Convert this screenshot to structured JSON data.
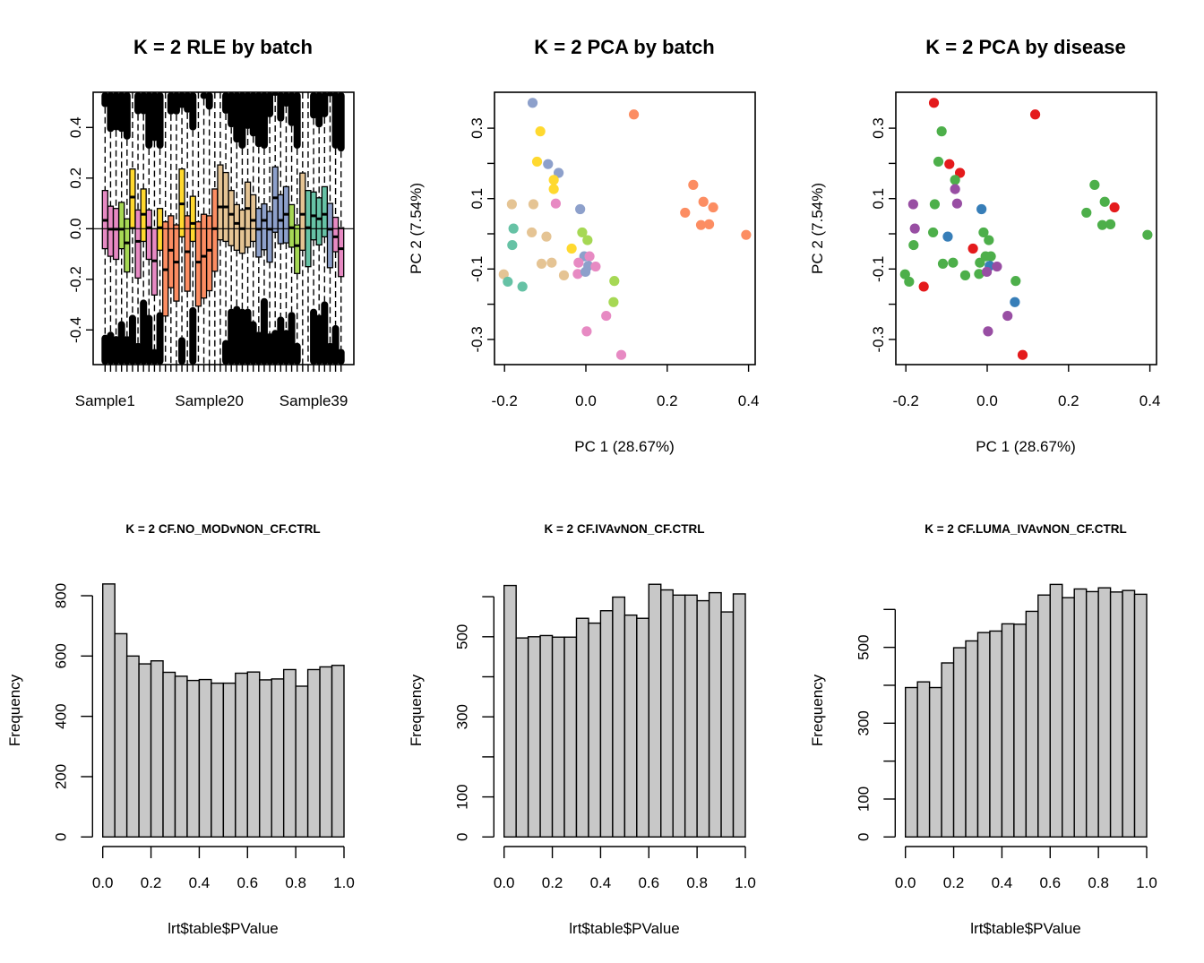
{
  "figure": {
    "panels": 6,
    "layout": "2 rows x 3 columns"
  },
  "palettes": {
    "batch": {
      "pink": "#E78AC3",
      "green": "#A6D854",
      "yellow": "#FFD92F",
      "orange": "#FC8D62",
      "tan": "#E5C494",
      "blue": "#8DA0CB",
      "teal": "#66C2A5"
    },
    "disease": {
      "red": "#E41A1C",
      "green": "#4DAF4A",
      "blue": "#377EB8",
      "purple": "#984EA3"
    },
    "hist_fill": "#C8C8C8"
  },
  "chart_data": [
    {
      "id": "rle",
      "type": "boxplot",
      "title": "K = 2 RLE by batch",
      "xlabel": "",
      "ylabel": "",
      "ylim": [
        -0.535,
        0.54
      ],
      "yticks": [
        -0.4,
        -0.2,
        0.0,
        0.2,
        0.4
      ],
      "ytick_labels": [
        "-0.4",
        "-0.2",
        "0.0",
        "0.2",
        "0.4"
      ],
      "xtick_labels": [
        {
          "index": 0,
          "label": "Sample1"
        },
        {
          "index": 19,
          "label": "Sample20"
        },
        {
          "index": 38,
          "label": "Sample39"
        }
      ],
      "reference_line": 0.0,
      "boxes": [
        {
          "c": "pink",
          "q3": 0.151,
          "med": 0.033,
          "q1": -0.079,
          "outHi": 0.48,
          "outLo": -0.419
        },
        {
          "c": "pink",
          "q3": 0.089,
          "med": -0.002,
          "q1": -0.109,
          "outHi": 0.382,
          "outLo": -0.407
        },
        {
          "c": "pink",
          "q3": 0.08,
          "med": -0.002,
          "q1": -0.121,
          "outHi": 0.388,
          "outLo": -0.424
        },
        {
          "c": "green",
          "q3": 0.104,
          "med": -0.002,
          "q1": -0.079,
          "outHi": 0.382,
          "outLo": -0.365
        },
        {
          "c": "green",
          "q3": 0.039,
          "med": -0.056,
          "q1": -0.171,
          "outHi": 0.352,
          "outLo": -0.424
        },
        {
          "c": "yellow",
          "q3": 0.236,
          "med": 0.125,
          "q1": 0.004,
          "outHi": null,
          "outLo": -0.34
        },
        {
          "c": "pink",
          "q3": 0.074,
          "med": -0.05,
          "q1": -0.195,
          "outHi": 0.452,
          "outLo": -0.451
        },
        {
          "c": "yellow",
          "q3": 0.157,
          "med": 0.057,
          "q1": -0.05,
          "outHi": 0.452,
          "outLo": -0.28
        },
        {
          "c": "pink",
          "q3": 0.074,
          "med": 0.004,
          "q1": -0.121,
          "outHi": 0.316,
          "outLo": -0.34
        },
        {
          "c": "pink",
          "q3": 0.0,
          "med": -0.127,
          "q1": -0.262,
          "outHi": 0.346,
          "outLo": -0.475
        },
        {
          "c": "yellow",
          "q3": 0.08,
          "med": 0.004,
          "q1": -0.085,
          "outHi": 0.316,
          "outLo": -0.329
        },
        {
          "c": "orange",
          "q3": 0.027,
          "med": -0.162,
          "q1": -0.345,
          "outHi": null,
          "outLo": null
        },
        {
          "c": "orange",
          "q3": 0.051,
          "med": -0.085,
          "q1": -0.233,
          "outHi": 0.451,
          "outLo": null
        },
        {
          "c": "orange",
          "q3": 0.015,
          "med": -0.132,
          "q1": -0.286,
          "outHi": 0.451,
          "outLo": null
        },
        {
          "c": "yellow",
          "q3": 0.236,
          "med": 0.098,
          "q1": -0.032,
          "outHi": 0.476,
          "outLo": -0.428
        },
        {
          "c": "orange",
          "q3": 0.051,
          "med": -0.091,
          "q1": -0.247,
          "outHi": 0.458,
          "outLo": null
        },
        {
          "c": "yellow",
          "q3": 0.128,
          "med": 0.021,
          "q1": -0.05,
          "outHi": 0.388,
          "outLo": -0.31
        },
        {
          "c": "orange",
          "q3": 0.027,
          "med": -0.132,
          "q1": -0.306,
          "outHi": null,
          "outLo": null
        },
        {
          "c": "orange",
          "q3": 0.057,
          "med": -0.109,
          "q1": -0.274,
          "outHi": 0.512,
          "outLo": null
        },
        {
          "c": "orange",
          "q3": 0.051,
          "med": -0.085,
          "q1": -0.245,
          "outHi": 0.47,
          "outLo": null
        },
        {
          "c": "orange",
          "q3": 0.157,
          "med": 0.0,
          "q1": -0.168,
          "outHi": null,
          "outLo": null
        },
        {
          "c": "tan",
          "q3": 0.252,
          "med": 0.086,
          "q1": -0.044,
          "outHi": null,
          "outLo": null
        },
        {
          "c": "tan",
          "q3": 0.222,
          "med": 0.086,
          "q1": -0.05,
          "outHi": 0.454,
          "outLo": -0.44
        },
        {
          "c": "tan",
          "q3": 0.151,
          "med": 0.057,
          "q1": -0.067,
          "outHi": 0.4,
          "outLo": -0.316
        },
        {
          "c": "tan",
          "q3": 0.095,
          "med": 0.021,
          "q1": -0.085,
          "outHi": 0.34,
          "outLo": -0.305
        },
        {
          "c": "tan",
          "q3": 0.074,
          "med": 0.0,
          "q1": -0.097,
          "outHi": 0.316,
          "outLo": -0.316
        },
        {
          "c": "tan",
          "q3": 0.184,
          "med": 0.08,
          "q1": -0.073,
          "outHi": 0.394,
          "outLo": -0.316
        },
        {
          "c": "tan",
          "q3": 0.134,
          "med": 0.033,
          "q1": -0.05,
          "outHi": 0.364,
          "outLo": -0.365
        },
        {
          "c": "blue",
          "q3": 0.08,
          "med": -0.002,
          "q1": -0.112,
          "outHi": 0.322,
          "outLo": -0.407
        },
        {
          "c": "blue",
          "q3": 0.098,
          "med": 0.033,
          "q1": -0.083,
          "outHi": 0.316,
          "outLo": -0.274
        },
        {
          "c": "blue",
          "q3": 0.068,
          "med": -0.002,
          "q1": -0.132,
          "outHi": 0.44,
          "outLo": -0.413
        },
        {
          "c": "blue",
          "q3": 0.244,
          "med": 0.122,
          "q1": -0.014,
          "outHi": 0.525,
          "outLo": -0.4
        },
        {
          "c": "blue",
          "q3": 0.134,
          "med": 0.033,
          "q1": -0.059,
          "outHi": 0.423,
          "outLo": -0.347
        },
        {
          "c": "blue",
          "q3": 0.166,
          "med": 0.057,
          "q1": -0.056,
          "outHi": 0.482,
          "outLo": -0.4
        },
        {
          "c": "green",
          "q3": 0.095,
          "med": 0.004,
          "q1": -0.073,
          "outHi": 0.405,
          "outLo": -0.329
        },
        {
          "c": "green",
          "q3": 0.015,
          "med": -0.067,
          "q1": -0.177,
          "outHi": 0.316,
          "outLo": -0.451
        },
        {
          "c": "tan",
          "q3": 0.22,
          "med": 0.057,
          "q1": -0.085,
          "outHi": null,
          "outLo": null
        },
        {
          "c": "teal",
          "q3": 0.151,
          "med": 0.004,
          "q1": -0.15,
          "outHi": null,
          "outLo": null
        },
        {
          "c": "teal",
          "q3": 0.145,
          "med": 0.051,
          "q1": -0.044,
          "outHi": 0.435,
          "outLo": -0.316
        },
        {
          "c": "teal",
          "q3": 0.122,
          "med": 0.039,
          "q1": -0.064,
          "outHi": 0.4,
          "outLo": -0.34
        },
        {
          "c": "teal",
          "q3": 0.166,
          "med": 0.057,
          "q1": -0.032,
          "outHi": 0.44,
          "outLo": -0.287
        },
        {
          "c": "blue",
          "q3": 0.1,
          "med": -0.002,
          "q1": -0.154,
          "outHi": 0.523,
          "outLo": -0.451
        },
        {
          "c": "pink",
          "q3": 0.045,
          "med": -0.032,
          "q1": -0.091,
          "outHi": 0.316,
          "outLo": -0.381
        },
        {
          "c": "pink",
          "q3": 0.004,
          "med": -0.079,
          "q1": -0.189,
          "outHi": 0.305,
          "outLo": -0.475
        }
      ]
    },
    {
      "id": "pca_batch",
      "type": "scatter",
      "title": "K = 2 PCA by batch",
      "xlabel": "PC 1 (28.67%)",
      "ylabel": "PC 2 (7.54%)",
      "xlim": [
        -0.222,
        0.408
      ],
      "ylim": [
        -0.367,
        0.405
      ],
      "xticks": [
        -0.2,
        0.0,
        0.2,
        0.4
      ],
      "xtick_labels": [
        "-0.2",
        "0.0",
        "0.2",
        "0.4"
      ],
      "yticks": [
        -0.3,
        -0.2,
        -0.1,
        0.0,
        0.1,
        0.2,
        0.3
      ],
      "ytick_labels": [
        "-0.3",
        "",
        "-0.1",
        "",
        "0.1",
        "",
        "0.3"
      ],
      "color_key": "batch",
      "points": [
        {
          "x": -0.131,
          "y": 0.372,
          "batch": "blue",
          "disease": "red"
        },
        {
          "x": 0.118,
          "y": 0.339,
          "batch": "orange",
          "disease": "red"
        },
        {
          "x": -0.112,
          "y": 0.291,
          "batch": "yellow",
          "disease": "green"
        },
        {
          "x": -0.12,
          "y": 0.205,
          "batch": "yellow",
          "disease": "green"
        },
        {
          "x": -0.093,
          "y": 0.198,
          "batch": "blue",
          "disease": "red"
        },
        {
          "x": -0.067,
          "y": 0.173,
          "batch": "blue",
          "disease": "red"
        },
        {
          "x": -0.079,
          "y": 0.153,
          "batch": "yellow",
          "disease": "green"
        },
        {
          "x": -0.079,
          "y": 0.127,
          "batch": "yellow",
          "disease": "purple"
        },
        {
          "x": -0.182,
          "y": 0.084,
          "batch": "tan",
          "disease": "purple"
        },
        {
          "x": -0.129,
          "y": 0.084,
          "batch": "tan",
          "disease": "green"
        },
        {
          "x": -0.074,
          "y": 0.086,
          "batch": "pink",
          "disease": "purple"
        },
        {
          "x": -0.014,
          "y": 0.07,
          "batch": "blue",
          "disease": "blue"
        },
        {
          "x": 0.264,
          "y": 0.139,
          "batch": "orange",
          "disease": "green"
        },
        {
          "x": 0.289,
          "y": 0.091,
          "batch": "orange",
          "disease": "green"
        },
        {
          "x": 0.313,
          "y": 0.075,
          "batch": "orange",
          "disease": "red"
        },
        {
          "x": 0.244,
          "y": 0.06,
          "batch": "orange",
          "disease": "green"
        },
        {
          "x": 0.283,
          "y": 0.025,
          "batch": "orange",
          "disease": "green"
        },
        {
          "x": 0.303,
          "y": 0.027,
          "batch": "orange",
          "disease": "green"
        },
        {
          "x": 0.394,
          "y": -0.003,
          "batch": "orange",
          "disease": "green"
        },
        {
          "x": -0.178,
          "y": 0.015,
          "batch": "teal",
          "disease": "purple"
        },
        {
          "x": -0.133,
          "y": 0.004,
          "batch": "tan",
          "disease": "green"
        },
        {
          "x": -0.097,
          "y": -0.008,
          "batch": "tan",
          "disease": "blue"
        },
        {
          "x": -0.009,
          "y": 0.004,
          "batch": "green",
          "disease": "green"
        },
        {
          "x": 0.004,
          "y": -0.018,
          "batch": "green",
          "disease": "green"
        },
        {
          "x": -0.181,
          "y": -0.032,
          "batch": "teal",
          "disease": "green"
        },
        {
          "x": -0.035,
          "y": -0.042,
          "batch": "yellow",
          "disease": "red"
        },
        {
          "x": -0.004,
          "y": -0.064,
          "batch": "blue",
          "disease": "green"
        },
        {
          "x": 0.009,
          "y": -0.064,
          "batch": "pink",
          "disease": "green"
        },
        {
          "x": -0.018,
          "y": -0.082,
          "batch": "pink",
          "disease": "green"
        },
        {
          "x": 0.006,
          "y": -0.091,
          "batch": "blue",
          "disease": "blue"
        },
        {
          "x": 0.024,
          "y": -0.093,
          "batch": "pink",
          "disease": "purple"
        },
        {
          "x": -0.109,
          "y": -0.085,
          "batch": "tan",
          "disease": "green"
        },
        {
          "x": -0.084,
          "y": -0.082,
          "batch": "tan",
          "disease": "green"
        },
        {
          "x": -0.02,
          "y": -0.114,
          "batch": "pink",
          "disease": "green"
        },
        {
          "x": -0.001,
          "y": -0.108,
          "batch": "blue",
          "disease": "purple"
        },
        {
          "x": -0.054,
          "y": -0.118,
          "batch": "tan",
          "disease": "green"
        },
        {
          "x": -0.202,
          "y": -0.115,
          "batch": "tan",
          "disease": "green"
        },
        {
          "x": -0.192,
          "y": -0.136,
          "batch": "teal",
          "disease": "green"
        },
        {
          "x": -0.156,
          "y": -0.15,
          "batch": "teal",
          "disease": "red"
        },
        {
          "x": 0.07,
          "y": -0.134,
          "batch": "green",
          "disease": "green"
        },
        {
          "x": 0.068,
          "y": -0.194,
          "batch": "green",
          "disease": "blue"
        },
        {
          "x": 0.05,
          "y": -0.233,
          "batch": "pink",
          "disease": "purple"
        },
        {
          "x": 0.002,
          "y": -0.277,
          "batch": "pink",
          "disease": "purple"
        },
        {
          "x": 0.087,
          "y": -0.344,
          "batch": "pink",
          "disease": "red"
        }
      ]
    },
    {
      "id": "pca_disease",
      "type": "scatter",
      "title": "K = 2 PCA by disease",
      "xlabel": "PC 1 (28.67%)",
      "ylabel": "PC 2 (7.54%)",
      "xlim": [
        -0.222,
        0.408
      ],
      "ylim": [
        -0.367,
        0.405
      ],
      "xticks": [
        -0.2,
        0.0,
        0.2,
        0.4
      ],
      "xtick_labels": [
        "-0.2",
        "0.0",
        "0.2",
        "0.4"
      ],
      "yticks": [
        -0.3,
        -0.2,
        -0.1,
        0.0,
        0.1,
        0.2,
        0.3
      ],
      "ytick_labels": [
        "-0.3",
        "",
        "-0.1",
        "",
        "0.1",
        "",
        "0.3"
      ],
      "color_key": "disease",
      "points_ref": "pca_batch"
    },
    {
      "id": "hist1",
      "type": "bar",
      "title": "K = 2 CF.NO_MODvNON_CF.CTRL",
      "xlabel": "lrt$table$PValue",
      "ylabel": "Frequency",
      "bin_edges_start": 0.0,
      "bin_width": 0.05,
      "xlim": [
        0,
        1
      ],
      "ylim": [
        0,
        870
      ],
      "xticks": [
        0,
        0.2,
        0.4,
        0.6,
        0.8,
        1.0
      ],
      "xtick_labels": [
        "0.0",
        "0.2",
        "0.4",
        "0.6",
        "0.8",
        "1.0"
      ],
      "yticks": [
        0,
        200,
        400,
        600,
        800
      ],
      "ytick_labels": [
        "0",
        "200",
        "400",
        "600",
        "800"
      ],
      "values": [
        839,
        674,
        600,
        574,
        584,
        546,
        533,
        519,
        522,
        510,
        510,
        543,
        547,
        521,
        524,
        555,
        500,
        555,
        564,
        569
      ]
    },
    {
      "id": "hist2",
      "type": "bar",
      "title": "K = 2 CF.IVAvNON_CF.CTRL",
      "xlabel": "lrt$table$PValue",
      "ylabel": "Frequency",
      "bin_edges_start": 0.0,
      "bin_width": 0.05,
      "xlim": [
        0,
        1
      ],
      "ylim": [
        0,
        650
      ],
      "xticks": [
        0,
        0.2,
        0.4,
        0.6,
        0.8,
        1.0
      ],
      "xtick_labels": [
        "0.0",
        "0.2",
        "0.4",
        "0.6",
        "0.8",
        "1.0"
      ],
      "yticks": [
        0,
        100,
        200,
        300,
        400,
        500,
        600
      ],
      "ytick_labels": [
        "0",
        "100",
        "",
        "300",
        "",
        "500",
        ""
      ],
      "values": [
        628,
        497,
        500,
        503,
        499,
        499,
        546,
        534,
        565,
        599,
        554,
        546,
        631,
        617,
        604,
        604,
        590,
        610,
        562,
        607
      ]
    },
    {
      "id": "hist3",
      "type": "bar",
      "title": "K = 2 CF.LUMA_IVAvNON_CF.CTRL",
      "xlabel": "lrt$table$PValue",
      "ylabel": "Frequency",
      "bin_edges_start": 0.0,
      "bin_width": 0.05,
      "xlim": [
        0,
        1
      ],
      "ylim": [
        0,
        690
      ],
      "xticks": [
        0,
        0.2,
        0.4,
        0.6,
        0.8,
        1.0
      ],
      "xtick_labels": [
        "0.0",
        "0.2",
        "0.4",
        "0.6",
        "0.8",
        "1.0"
      ],
      "yticks": [
        0,
        100,
        200,
        300,
        400,
        500,
        600
      ],
      "ytick_labels": [
        "0",
        "100",
        "",
        "300",
        "",
        "500",
        ""
      ],
      "values": [
        394,
        409,
        394,
        459,
        499,
        517,
        539,
        543,
        562,
        561,
        595,
        638,
        666,
        631,
        654,
        647,
        657,
        646,
        650,
        640
      ]
    }
  ]
}
